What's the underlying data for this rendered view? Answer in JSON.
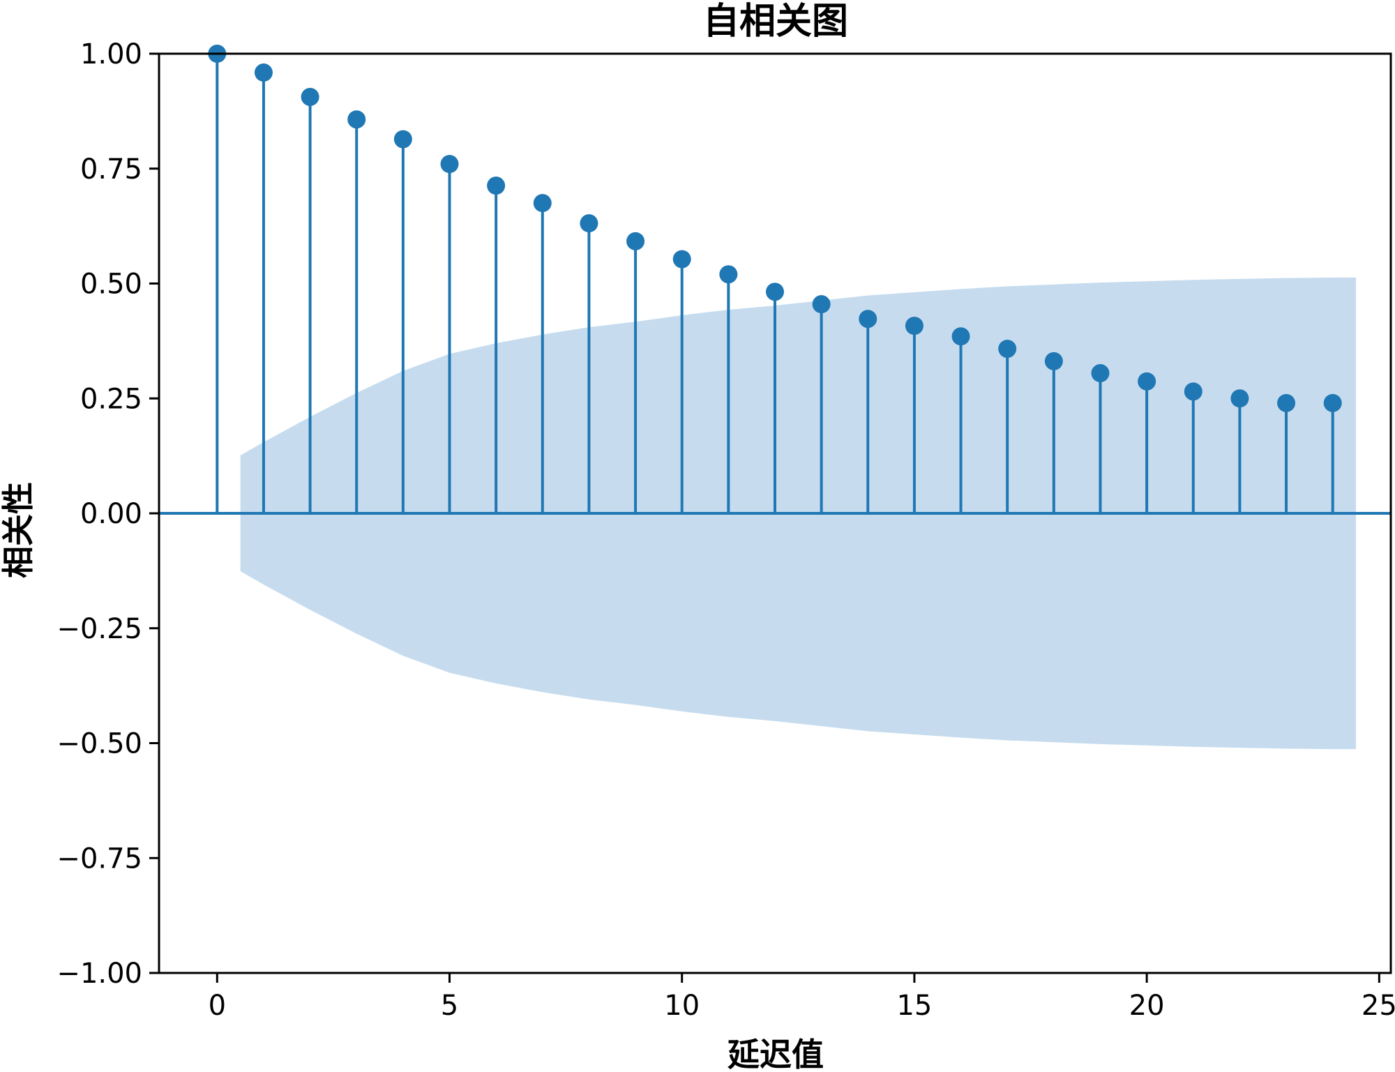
{
  "chart_data": {
    "type": "stem",
    "title": "自相关图",
    "xlabel": "延迟值",
    "ylabel": "相关性",
    "xlim": [
      -1.25,
      25.25
    ],
    "ylim": [
      -1.0,
      1.0
    ],
    "xticks": [
      0,
      5,
      10,
      15,
      20,
      25
    ],
    "yticks": [
      -1.0,
      -0.75,
      -0.5,
      -0.25,
      0.0,
      0.25,
      0.5,
      0.75,
      1.0
    ],
    "xtick_labels": [
      "0",
      "5",
      "10",
      "15",
      "20",
      "25"
    ],
    "ytick_labels": [
      "−1.00",
      "−0.75",
      "−0.50",
      "−0.25",
      "0.00",
      "0.25",
      "0.50",
      "0.75",
      "1.00"
    ],
    "grid": false,
    "colors": {
      "stem": "#1f77b4",
      "confidence_band": "#c6dcee",
      "axes": "#000000"
    },
    "series": [
      {
        "lags": [
          0,
          1,
          2,
          3,
          4,
          5,
          6,
          7,
          8,
          9,
          10,
          11,
          12,
          13,
          14,
          15,
          16,
          17,
          18,
          19,
          20,
          21,
          22,
          23,
          24
        ],
        "values": [
          1.0,
          0.959,
          0.906,
          0.857,
          0.814,
          0.76,
          0.713,
          0.675,
          0.631,
          0.592,
          0.553,
          0.52,
          0.482,
          0.455,
          0.423,
          0.408,
          0.385,
          0.358,
          0.331,
          0.305,
          0.287,
          0.265,
          0.25,
          0.24,
          0.24
        ]
      }
    ],
    "confidence_band": {
      "x_start": 0.5,
      "x_end": 24.5,
      "lags": [
        0.5,
        1,
        2,
        3,
        4,
        5,
        6,
        7,
        8,
        9,
        10,
        11,
        12,
        13,
        14,
        15,
        16,
        17,
        18,
        19,
        20,
        21,
        22,
        23,
        24,
        24.5
      ],
      "upper": [
        0.126,
        0.155,
        0.21,
        0.262,
        0.31,
        0.347,
        0.37,
        0.389,
        0.405,
        0.417,
        0.431,
        0.443,
        0.452,
        0.463,
        0.474,
        0.481,
        0.488,
        0.494,
        0.498,
        0.502,
        0.505,
        0.508,
        0.51,
        0.512,
        0.513,
        0.513
      ],
      "lower": [
        -0.126,
        -0.155,
        -0.21,
        -0.262,
        -0.31,
        -0.347,
        -0.37,
        -0.389,
        -0.405,
        -0.417,
        -0.431,
        -0.443,
        -0.452,
        -0.463,
        -0.474,
        -0.481,
        -0.488,
        -0.494,
        -0.498,
        -0.502,
        -0.505,
        -0.508,
        -0.51,
        -0.512,
        -0.513,
        -0.513
      ]
    }
  }
}
